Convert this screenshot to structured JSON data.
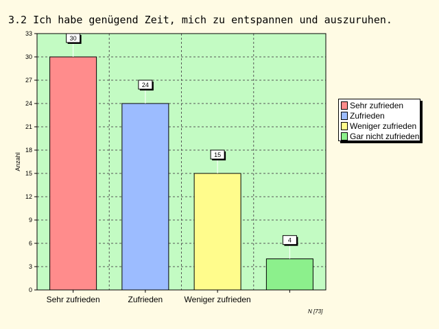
{
  "title": "3.2  Ich habe genügend Zeit, mich zu entspannen und auszuruhen.",
  "note": "N [73]",
  "colors": {
    "page_background": "#fffbe4",
    "plot_background": "#c3fbc3",
    "series": [
      "#ff8c8c",
      "#9cbcff",
      "#fffc8c",
      "#8cf08c"
    ]
  },
  "chart_data": {
    "type": "bar",
    "categories": [
      "Sehr zufrieden",
      "Zufrieden",
      "Weniger zufrieden",
      "Gar nicht zufrieden"
    ],
    "category_tick_labels": [
      "Sehr zufrieden",
      "Zufrieden",
      "Weniger zufrieden",
      ""
    ],
    "values": [
      30,
      24,
      15,
      4
    ],
    "data_labels": [
      "30",
      "24",
      "15",
      "4"
    ],
    "title": "3.2  Ich habe genügend Zeit, mich zu entspannen und auszuruhen.",
    "xlabel": "",
    "ylabel": "Anzahl",
    "ylim": [
      0,
      33
    ],
    "yticks": [
      0,
      3,
      6,
      9,
      12,
      15,
      18,
      21,
      24,
      27,
      30,
      33
    ],
    "grid": true,
    "legend_position": "right",
    "legend": [
      "Sehr zufrieden",
      "Zufrieden",
      "Weniger zufrieden",
      "Gar nicht zufrieden"
    ]
  }
}
